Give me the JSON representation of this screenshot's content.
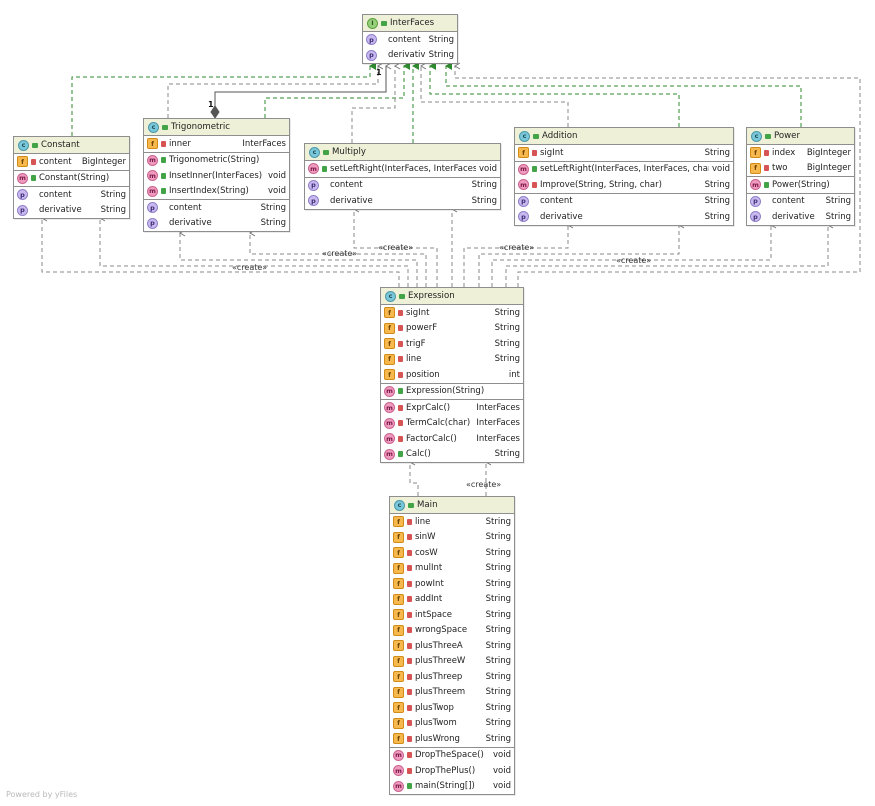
{
  "classes": {
    "interfaces": {
      "name": "InterFaces",
      "kind": "I",
      "sections": [
        [
          {
            "icon": "p",
            "lock": "none",
            "name": "content",
            "type": "String"
          },
          {
            "icon": "p",
            "lock": "none",
            "name": "derivative",
            "type": "String"
          }
        ]
      ]
    },
    "constant": {
      "name": "Constant",
      "kind": "C",
      "sections": [
        [
          {
            "icon": "f",
            "lock": "r",
            "name": "content",
            "type": "BigInteger"
          }
        ],
        [
          {
            "icon": "m",
            "lock": "g",
            "name": "Constant(String)",
            "type": ""
          }
        ],
        [
          {
            "icon": "p",
            "lock": "none",
            "name": "content",
            "type": "String"
          },
          {
            "icon": "p",
            "lock": "none",
            "name": "derivative",
            "type": "String"
          }
        ]
      ]
    },
    "trigonometric": {
      "name": "Trigonometric",
      "kind": "C",
      "sections": [
        [
          {
            "icon": "f",
            "lock": "r",
            "name": "inner",
            "type": "InterFaces"
          }
        ],
        [
          {
            "icon": "m",
            "lock": "g",
            "name": "Trigonometric(String)",
            "type": ""
          },
          {
            "icon": "m",
            "lock": "g",
            "name": "InsetInner(InterFaces)",
            "type": "void"
          },
          {
            "icon": "m",
            "lock": "g",
            "name": "InsertIndex(String)",
            "type": "void"
          }
        ],
        [
          {
            "icon": "p",
            "lock": "none",
            "name": "content",
            "type": "String"
          },
          {
            "icon": "p",
            "lock": "none",
            "name": "derivative",
            "type": "String"
          }
        ]
      ]
    },
    "multiply": {
      "name": "Multiply",
      "kind": "C",
      "sections": [
        [
          {
            "icon": "m",
            "lock": "g",
            "name": "setLeftRight(InterFaces, InterFaces)",
            "type": "void"
          }
        ],
        [
          {
            "icon": "p",
            "lock": "none",
            "name": "content",
            "type": "String"
          },
          {
            "icon": "p",
            "lock": "none",
            "name": "derivative",
            "type": "String"
          }
        ]
      ]
    },
    "addition": {
      "name": "Addition",
      "kind": "C",
      "sections": [
        [
          {
            "icon": "f",
            "lock": "r",
            "name": "sigInt",
            "type": "String"
          }
        ],
        [
          {
            "icon": "m",
            "lock": "g",
            "name": "setLeftRight(InterFaces, InterFaces, char)",
            "type": "void"
          },
          {
            "icon": "m",
            "lock": "r",
            "name": "Improve(String, String, char)",
            "type": "String"
          }
        ],
        [
          {
            "icon": "p",
            "lock": "none",
            "name": "content",
            "type": "String"
          },
          {
            "icon": "p",
            "lock": "none",
            "name": "derivative",
            "type": "String"
          }
        ]
      ]
    },
    "power": {
      "name": "Power",
      "kind": "C",
      "sections": [
        [
          {
            "icon": "f",
            "lock": "r",
            "name": "index",
            "type": "BigInteger"
          },
          {
            "icon": "f",
            "lock": "r",
            "name": "two",
            "type": "BigInteger"
          }
        ],
        [
          {
            "icon": "m",
            "lock": "g",
            "name": "Power(String)",
            "type": ""
          }
        ],
        [
          {
            "icon": "p",
            "lock": "none",
            "name": "content",
            "type": "String"
          },
          {
            "icon": "p",
            "lock": "none",
            "name": "derivative",
            "type": "String"
          }
        ]
      ]
    },
    "expression": {
      "name": "Expression",
      "kind": "C",
      "sections": [
        [
          {
            "icon": "f",
            "lock": "r",
            "name": "sigInt",
            "type": "String"
          },
          {
            "icon": "f",
            "lock": "r",
            "name": "powerF",
            "type": "String"
          },
          {
            "icon": "f",
            "lock": "r",
            "name": "trigF",
            "type": "String"
          },
          {
            "icon": "f",
            "lock": "r",
            "name": "line",
            "type": "String"
          },
          {
            "icon": "f",
            "lock": "r",
            "name": "position",
            "type": "int"
          }
        ],
        [
          {
            "icon": "m",
            "lock": "g",
            "name": "Expression(String)",
            "type": ""
          }
        ],
        [
          {
            "icon": "m",
            "lock": "r",
            "name": "ExprCalc()",
            "type": "InterFaces"
          },
          {
            "icon": "m",
            "lock": "r",
            "name": "TermCalc(char)",
            "type": "InterFaces"
          },
          {
            "icon": "m",
            "lock": "r",
            "name": "FactorCalc()",
            "type": "InterFaces"
          },
          {
            "icon": "m",
            "lock": "g",
            "name": "Calc()",
            "type": "String"
          }
        ]
      ]
    },
    "main": {
      "name": "Main",
      "kind": "C",
      "sections": [
        [
          {
            "icon": "f",
            "lock": "r",
            "name": "line",
            "type": "String"
          },
          {
            "icon": "f",
            "lock": "r",
            "name": "sinW",
            "type": "String"
          },
          {
            "icon": "f",
            "lock": "r",
            "name": "cosW",
            "type": "String"
          },
          {
            "icon": "f",
            "lock": "r",
            "name": "mulInt",
            "type": "String"
          },
          {
            "icon": "f",
            "lock": "r",
            "name": "powInt",
            "type": "String"
          },
          {
            "icon": "f",
            "lock": "r",
            "name": "addInt",
            "type": "String"
          },
          {
            "icon": "f",
            "lock": "r",
            "name": "intSpace",
            "type": "String"
          },
          {
            "icon": "f",
            "lock": "r",
            "name": "wrongSpace",
            "type": "String"
          },
          {
            "icon": "f",
            "lock": "r",
            "name": "plusThreeA",
            "type": "String"
          },
          {
            "icon": "f",
            "lock": "r",
            "name": "plusThreeW",
            "type": "String"
          },
          {
            "icon": "f",
            "lock": "r",
            "name": "plusThreep",
            "type": "String"
          },
          {
            "icon": "f",
            "lock": "r",
            "name": "plusThreem",
            "type": "String"
          },
          {
            "icon": "f",
            "lock": "r",
            "name": "plusTwop",
            "type": "String"
          },
          {
            "icon": "f",
            "lock": "r",
            "name": "plusTwom",
            "type": "String"
          },
          {
            "icon": "f",
            "lock": "r",
            "name": "plusWrong",
            "type": "String"
          }
        ],
        [
          {
            "icon": "m",
            "lock": "r",
            "name": "DropTheSpace()",
            "type": "void"
          },
          {
            "icon": "m",
            "lock": "r",
            "name": "DropThePlus()",
            "type": "void"
          },
          {
            "icon": "m",
            "lock": "g",
            "name": "main(String[])",
            "type": "void"
          }
        ]
      ]
    }
  },
  "labels": {
    "create": "«create»",
    "multiplicity": "1"
  },
  "footer": "Powered by yFiles",
  "colors": {
    "realization": "#2f8a2f",
    "dependency": "#8a8a8a",
    "header": "#eef1d8"
  }
}
